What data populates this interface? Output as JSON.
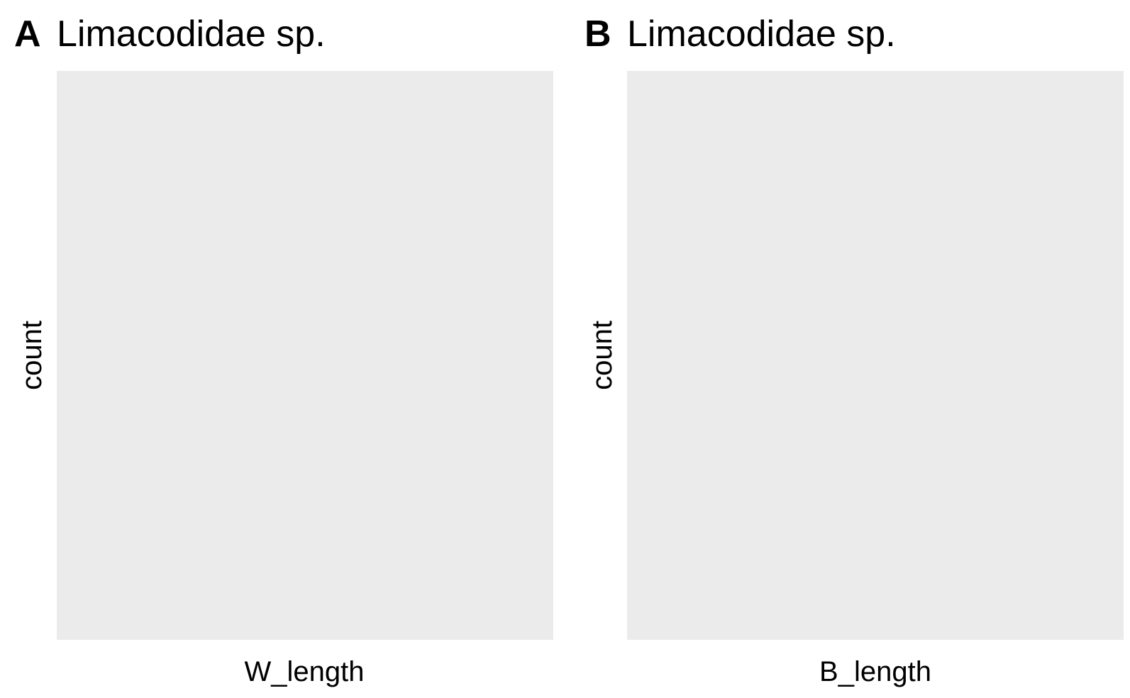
{
  "chart_data": [
    {
      "type": "bar",
      "panel_tag": "A",
      "title": "Limacodidae sp.",
      "xlabel": "W_length",
      "ylabel": "count",
      "categories": [],
      "values": [],
      "grid": false,
      "background": "#ebebeb"
    },
    {
      "type": "bar",
      "panel_tag": "B",
      "title": "Limacodidae sp.",
      "xlabel": "B_length",
      "ylabel": "count",
      "categories": [],
      "values": [],
      "grid": false,
      "background": "#ebebeb"
    }
  ]
}
